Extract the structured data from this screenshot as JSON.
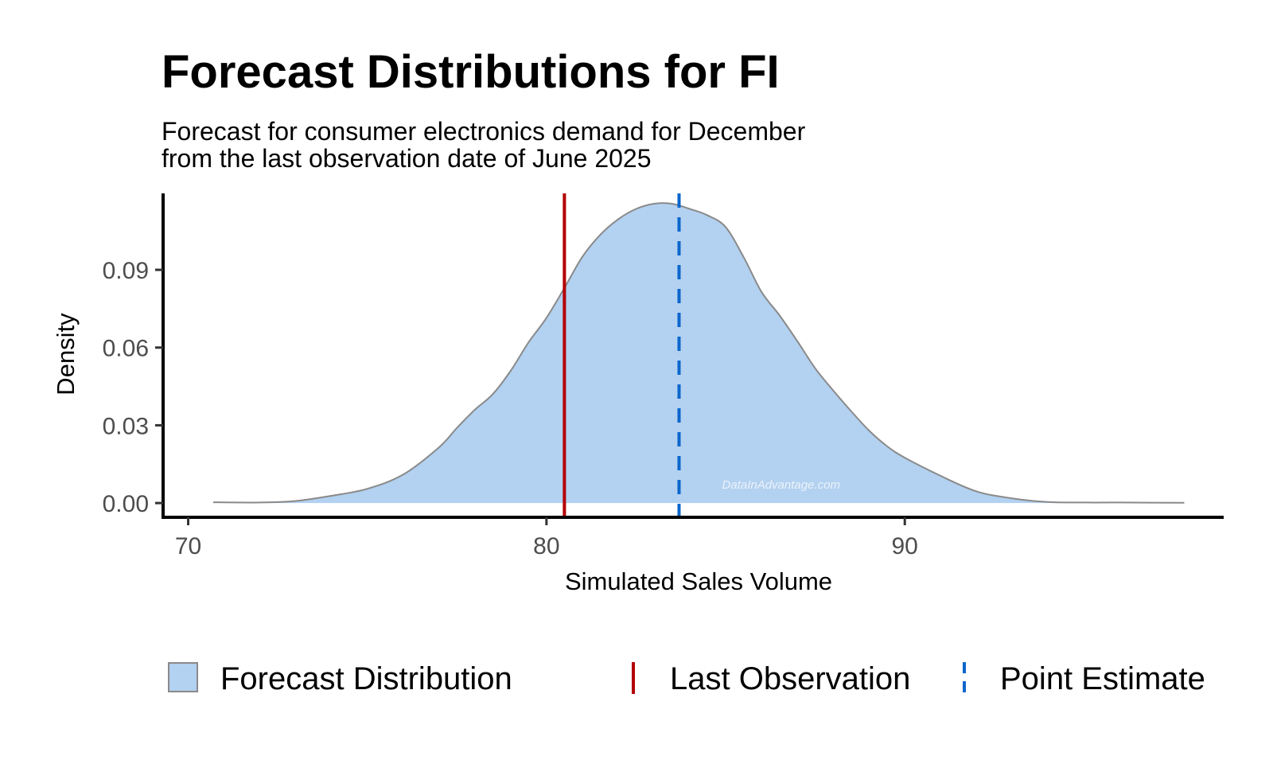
{
  "chart_data": {
    "type": "area",
    "title": "Forecast Distributions for FI",
    "subtitle_lines": [
      "Forecast for consumer electronics demand for December",
      "from the last observation date of June 2025"
    ],
    "xlabel": "Simulated Sales Volume",
    "ylabel": "Density",
    "xlim": [
      69.3,
      98.9
    ],
    "ylim": [
      -0.0055,
      0.1195
    ],
    "x_ticks": [
      70,
      80,
      90
    ],
    "x_tick_labels": [
      "70",
      "80",
      "90"
    ],
    "y_ticks": [
      0,
      0.03,
      0.06,
      0.09
    ],
    "y_tick_labels": [
      "0.00",
      "0.03",
      "0.06",
      "0.09"
    ],
    "grid": false,
    "legend_position": "bottom",
    "series": [
      {
        "name": "Forecast Distribution",
        "kind": "density",
        "fill": "#b3d1f0",
        "stroke": "#8a8a8a",
        "x": [
          70.7,
          72.0,
          73.0,
          74.0,
          75.0,
          76.0,
          77.0,
          77.5,
          78.0,
          78.5,
          79.0,
          79.5,
          80.0,
          80.5,
          81.0,
          81.5,
          82.0,
          82.5,
          83.0,
          83.5,
          84.0,
          84.5,
          85.0,
          85.5,
          86.0,
          86.5,
          87.0,
          87.5,
          88.0,
          88.5,
          89.0,
          89.5,
          90.0,
          91.0,
          92.0,
          93.0,
          94.0,
          95.0,
          96.0,
          97.8
        ],
        "y": [
          0.0003,
          0.0002,
          0.0008,
          0.0028,
          0.0055,
          0.011,
          0.0215,
          0.029,
          0.036,
          0.042,
          0.051,
          0.062,
          0.0715,
          0.083,
          0.095,
          0.1035,
          0.1095,
          0.1135,
          0.1155,
          0.1155,
          0.1135,
          0.111,
          0.1065,
          0.095,
          0.0815,
          0.0725,
          0.0625,
          0.052,
          0.0435,
          0.0355,
          0.028,
          0.022,
          0.0175,
          0.0105,
          0.0045,
          0.0018,
          0.0004,
          0.0002,
          0.0002,
          0.0001
        ]
      }
    ],
    "vlines": [
      {
        "name": "Last Observation",
        "x": 80.5,
        "color": "#b30000",
        "style": "solid"
      },
      {
        "name": "Point Estimate",
        "x": 83.7,
        "color": "#0a66cc",
        "style": "dashed"
      }
    ],
    "watermark": "DataInAdvantage.com",
    "legend": [
      {
        "label": "Forecast Distribution",
        "key": "area"
      },
      {
        "label": "Last Observation",
        "key": "solid-line"
      },
      {
        "label": "Point Estimate",
        "key": "dashed-line"
      }
    ]
  }
}
